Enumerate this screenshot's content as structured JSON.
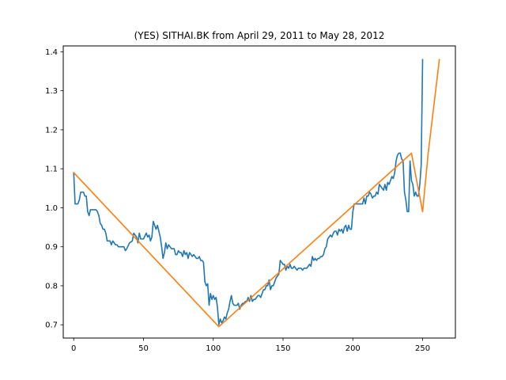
{
  "chart_data": {
    "type": "line",
    "title": "(YES) SITHAI.BK from April 29, 2011 to May 28, 2012",
    "xlabel": "",
    "ylabel": "",
    "xlim": [
      -7.5,
      273.5
    ],
    "ylim": [
      0.666,
      1.415
    ],
    "x_ticks": [
      0,
      50,
      100,
      150,
      200,
      250
    ],
    "y_ticks": [
      0.7,
      0.8,
      0.9,
      1.0,
      1.1,
      1.2,
      1.3,
      1.4
    ],
    "grid": false,
    "series": [
      {
        "name": "",
        "color": "#1f77b4",
        "points": [
          [
            0,
            1.09
          ],
          [
            1,
            1.01
          ],
          [
            3,
            1.01
          ],
          [
            4,
            1.02
          ],
          [
            5,
            1.04
          ],
          [
            7,
            1.04
          ],
          [
            8,
            1.03
          ],
          [
            9,
            1.03
          ],
          [
            10,
            0.99
          ],
          [
            11,
            0.98
          ],
          [
            12,
            0.995
          ],
          [
            14,
            0.995
          ],
          [
            16,
            0.995
          ],
          [
            17,
            0.99
          ],
          [
            18,
            0.98
          ],
          [
            19,
            0.96
          ],
          [
            20,
            0.955
          ],
          [
            21,
            0.945
          ],
          [
            22,
            0.945
          ],
          [
            23,
            0.935
          ],
          [
            24,
            0.915
          ],
          [
            26,
            0.915
          ],
          [
            27,
            0.905
          ],
          [
            28,
            0.915
          ],
          [
            30,
            0.905
          ],
          [
            31,
            0.905
          ],
          [
            32,
            0.9
          ],
          [
            34,
            0.9
          ],
          [
            36,
            0.9
          ],
          [
            37,
            0.89
          ],
          [
            38,
            0.895
          ],
          [
            40,
            0.91
          ],
          [
            42,
            0.915
          ],
          [
            43,
            0.935
          ],
          [
            45,
            0.925
          ],
          [
            46,
            0.91
          ],
          [
            47,
            0.935
          ],
          [
            48,
            0.92
          ],
          [
            50,
            0.92
          ],
          [
            52,
            0.935
          ],
          [
            53,
            0.925
          ],
          [
            54,
            0.93
          ],
          [
            55,
            0.915
          ],
          [
            56,
            0.925
          ],
          [
            57,
            0.965
          ],
          [
            58,
            0.955
          ],
          [
            59,
            0.945
          ],
          [
            60,
            0.955
          ],
          [
            61,
            0.94
          ],
          [
            62,
            0.925
          ],
          [
            63,
            0.9
          ],
          [
            64,
            0.87
          ],
          [
            65,
            0.885
          ],
          [
            66,
            0.91
          ],
          [
            67,
            0.895
          ],
          [
            68,
            0.905
          ],
          [
            69,
            0.9
          ],
          [
            70,
            0.895
          ],
          [
            72,
            0.895
          ],
          [
            73,
            0.88
          ],
          [
            74,
            0.88
          ],
          [
            75,
            0.89
          ],
          [
            76,
            0.885
          ],
          [
            77,
            0.885
          ],
          [
            78,
            0.875
          ],
          [
            79,
            0.89
          ],
          [
            80,
            0.88
          ],
          [
            81,
            0.885
          ],
          [
            82,
            0.87
          ],
          [
            83,
            0.885
          ],
          [
            84,
            0.88
          ],
          [
            85,
            0.875
          ],
          [
            86,
            0.88
          ],
          [
            87,
            0.875
          ],
          [
            88,
            0.87
          ],
          [
            89,
            0.87
          ],
          [
            90,
            0.875
          ],
          [
            91,
            0.865
          ],
          [
            92,
            0.865
          ],
          [
            93,
            0.86
          ],
          [
            94,
            0.81
          ],
          [
            95,
            0.8
          ],
          [
            96,
            0.805
          ],
          [
            97,
            0.75
          ],
          [
            98,
            0.78
          ],
          [
            99,
            0.765
          ],
          [
            100,
            0.775
          ],
          [
            101,
            0.765
          ],
          [
            102,
            0.77
          ],
          [
            103,
            0.745
          ],
          [
            104,
            0.7
          ],
          [
            105,
            0.715
          ],
          [
            106,
            0.705
          ],
          [
            107,
            0.71
          ],
          [
            108,
            0.72
          ],
          [
            109,
            0.715
          ],
          [
            110,
            0.73
          ],
          [
            111,
            0.74
          ],
          [
            112,
            0.76
          ],
          [
            113,
            0.775
          ],
          [
            114,
            0.755
          ],
          [
            115,
            0.75
          ],
          [
            116,
            0.75
          ],
          [
            117,
            0.75
          ],
          [
            118,
            0.755
          ],
          [
            119,
            0.74
          ],
          [
            120,
            0.75
          ],
          [
            121,
            0.755
          ],
          [
            122,
            0.755
          ],
          [
            123,
            0.76
          ],
          [
            124,
            0.76
          ],
          [
            125,
            0.77
          ],
          [
            126,
            0.76
          ],
          [
            127,
            0.775
          ],
          [
            128,
            0.76
          ],
          [
            129,
            0.765
          ],
          [
            130,
            0.765
          ],
          [
            131,
            0.77
          ],
          [
            132,
            0.775
          ],
          [
            133,
            0.775
          ],
          [
            134,
            0.77
          ],
          [
            135,
            0.78
          ],
          [
            136,
            0.79
          ],
          [
            137,
            0.79
          ],
          [
            138,
            0.8
          ],
          [
            139,
            0.8
          ],
          [
            140,
            0.815
          ],
          [
            141,
            0.79
          ],
          [
            142,
            0.8
          ],
          [
            143,
            0.8
          ],
          [
            144,
            0.81
          ],
          [
            145,
            0.82
          ],
          [
            146,
            0.825
          ],
          [
            147,
            0.83
          ],
          [
            148,
            0.865
          ],
          [
            149,
            0.86
          ],
          [
            150,
            0.855
          ],
          [
            151,
            0.855
          ],
          [
            152,
            0.84
          ],
          [
            153,
            0.85
          ],
          [
            154,
            0.845
          ],
          [
            155,
            0.855
          ],
          [
            156,
            0.845
          ],
          [
            157,
            0.845
          ],
          [
            158,
            0.85
          ],
          [
            159,
            0.845
          ],
          [
            160,
            0.84
          ],
          [
            161,
            0.845
          ],
          [
            162,
            0.845
          ],
          [
            163,
            0.845
          ],
          [
            164,
            0.84
          ],
          [
            165,
            0.845
          ],
          [
            166,
            0.845
          ],
          [
            167,
            0.845
          ],
          [
            168,
            0.85
          ],
          [
            169,
            0.855
          ],
          [
            170,
            0.85
          ],
          [
            171,
            0.875
          ],
          [
            172,
            0.865
          ],
          [
            173,
            0.87
          ],
          [
            174,
            0.865
          ],
          [
            175,
            0.87
          ],
          [
            176,
            0.87
          ],
          [
            177,
            0.875
          ],
          [
            178,
            0.875
          ],
          [
            179,
            0.88
          ],
          [
            180,
            0.895
          ],
          [
            181,
            0.9
          ],
          [
            182,
            0.92
          ],
          [
            183,
            0.925
          ],
          [
            184,
            0.93
          ],
          [
            185,
            0.925
          ],
          [
            186,
            0.935
          ],
          [
            187,
            0.94
          ],
          [
            188,
            0.94
          ],
          [
            189,
            0.93
          ],
          [
            190,
            0.945
          ],
          [
            191,
            0.94
          ],
          [
            192,
            0.945
          ],
          [
            193,
            0.935
          ],
          [
            194,
            0.95
          ],
          [
            195,
            0.955
          ],
          [
            196,
            0.94
          ],
          [
            197,
            0.955
          ],
          [
            198,
            0.945
          ],
          [
            199,
            0.945
          ],
          [
            200,
            0.99
          ],
          [
            201,
            1.01
          ],
          [
            203,
            1.01
          ],
          [
            205,
            1.01
          ],
          [
            207,
            1.01
          ],
          [
            208,
            1.025
          ],
          [
            209,
            1.01
          ],
          [
            210,
            1.03
          ],
          [
            211,
            1.03
          ],
          [
            212,
            1.04
          ],
          [
            213,
            1.035
          ],
          [
            214,
            1.025
          ],
          [
            215,
            1.03
          ],
          [
            216,
            1.03
          ],
          [
            217,
            1.04
          ],
          [
            218,
            1.035
          ],
          [
            219,
            1.06
          ],
          [
            220,
            1.055
          ],
          [
            221,
            1.05
          ],
          [
            222,
            1.045
          ],
          [
            223,
            1.06
          ],
          [
            224,
            1.045
          ],
          [
            225,
            1.065
          ],
          [
            226,
            1.06
          ],
          [
            227,
            1.07
          ],
          [
            228,
            1.08
          ],
          [
            229,
            1.075
          ],
          [
            230,
            1.09
          ],
          [
            231,
            1.12
          ],
          [
            232,
            1.135
          ],
          [
            233,
            1.14
          ],
          [
            234,
            1.14
          ],
          [
            235,
            1.125
          ],
          [
            236,
            1.12
          ],
          [
            237,
            1.04
          ],
          [
            238,
            1.02
          ],
          [
            239,
            0.99
          ],
          [
            240,
            0.99
          ],
          [
            241,
            1.12
          ],
          [
            242,
            1.07
          ],
          [
            243,
            1.06
          ],
          [
            244,
            1.03
          ],
          [
            245,
            1.04
          ],
          [
            246,
            1.03
          ],
          [
            247,
            1.03
          ],
          [
            248,
            1.06
          ],
          [
            249,
            1.11
          ],
          [
            250,
            1.38
          ]
        ]
      },
      {
        "name": "",
        "color": "#ff7f0e",
        "points": [
          [
            0,
            1.09
          ],
          [
            104,
            0.695
          ],
          [
            242,
            1.14
          ],
          [
            250,
            0.99
          ],
          [
            254,
            1.14
          ],
          [
            262,
            1.38
          ]
        ]
      }
    ]
  }
}
